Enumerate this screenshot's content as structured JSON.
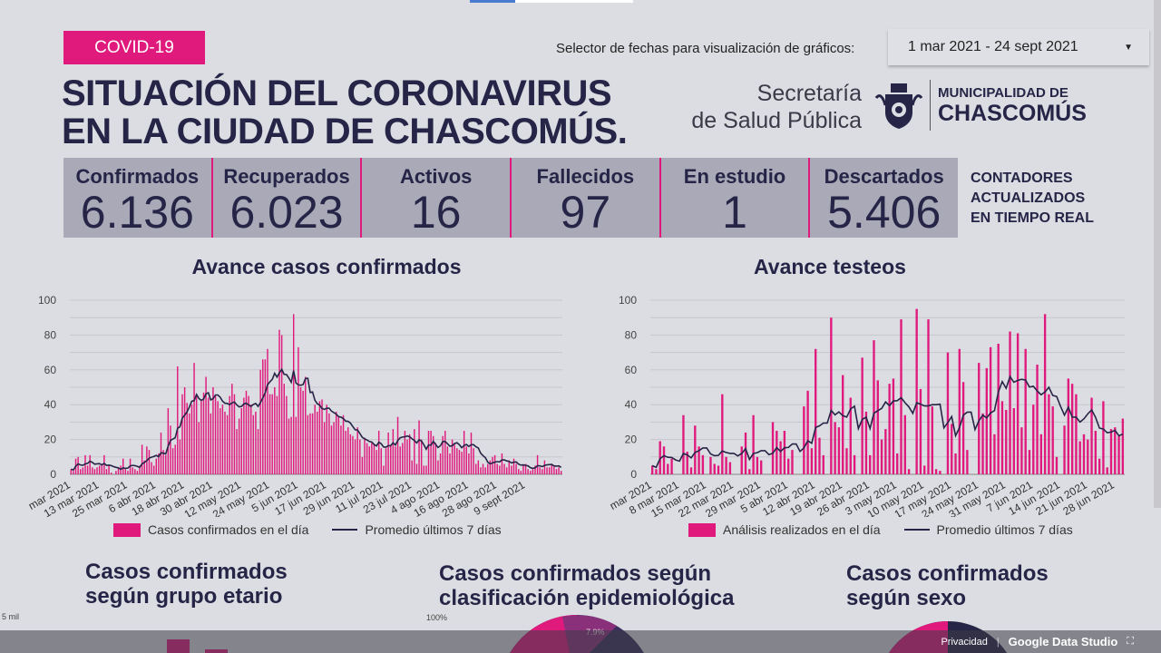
{
  "header": {
    "badge": "COVID-19",
    "title_line1": "SITUACIÓN DEL CORONAVIRUS",
    "title_line2": "EN LA CIUDAD DE CHASCOMÚS.",
    "date_selector_label": "Selector de fechas para visualización de gráficos:",
    "date_range": "1 mar 2021 - 24 sept 2021",
    "secretaria_line1": "Secretaría",
    "secretaria_line2": "de Salud Pública",
    "muni_line1": "MUNICIPALIDAD DE",
    "muni_line2": "CHASCOMÚS"
  },
  "counters": [
    {
      "label": "Confirmados",
      "value": "6.136"
    },
    {
      "label": "Recuperados",
      "value": "6.023"
    },
    {
      "label": "Activos",
      "value": "16"
    },
    {
      "label": "Fallecidos",
      "value": "97"
    },
    {
      "label": "En estudio",
      "value": "1"
    },
    {
      "label": "Descartados",
      "value": "5.406"
    }
  ],
  "counters_note": [
    "CONTADORES",
    "ACTUALIZADOS",
    "EN TIEMPO REAL"
  ],
  "colors": {
    "accent": "#e0197d",
    "navy": "#262547",
    "background": "#dcdde2"
  },
  "sections": {
    "etario": [
      "Casos confirmados",
      "según grupo etario"
    ],
    "epi": [
      "Casos confirmados según",
      "clasificación epidemiológica"
    ],
    "sexo": [
      "Casos confirmados",
      "según sexo"
    ],
    "etario_axis_top": "5 mil",
    "epi_axis_top": "100%",
    "epi_slice_label": "7.9%"
  },
  "footer": {
    "privacy": "Privacidad",
    "brand": "Google Data Studio"
  },
  "chart_data": [
    {
      "type": "bar",
      "title": "Avance casos confirmados",
      "ylim": [
        0,
        100
      ],
      "yticks": [
        0,
        20,
        40,
        60,
        80,
        100
      ],
      "grid": true,
      "legend_position": "bottom",
      "xtick_labels": [
        "mar 2021",
        "13 mar 2021",
        "25 mar 2021",
        "6 abr 2021",
        "18 abr 2021",
        "30 abr 2021",
        "12 may 2021",
        "24 may 2021",
        "5 jun 2021",
        "17 jun 2021",
        "29 jun 2021",
        "11 jul 2021",
        "23 jul 2021",
        "4 ago 2021",
        "16 ago 2021",
        "28 ago 2021",
        "9 sept 2021"
      ],
      "x_start": "1 mar 2021",
      "x_end": "24 sept 2021",
      "series": [
        {
          "name": "Casos confirmados en el día",
          "type": "bar",
          "values": [
            3,
            2,
            9,
            10,
            3,
            4,
            11,
            5,
            11,
            4,
            3,
            4,
            5,
            6,
            11,
            3,
            5,
            1,
            0,
            2,
            4,
            5,
            9,
            3,
            2,
            9,
            4,
            3,
            2,
            5,
            17,
            8,
            16,
            14,
            7,
            5,
            9,
            12,
            24,
            14,
            11,
            38,
            28,
            15,
            17,
            62,
            20,
            46,
            50,
            41,
            35,
            40,
            64,
            45,
            30,
            42,
            47,
            56,
            44,
            35,
            50,
            45,
            42,
            38,
            40,
            36,
            34,
            45,
            52,
            46,
            26,
            32,
            38,
            44,
            48,
            45,
            40,
            34,
            36,
            26,
            60,
            66,
            66,
            72,
            46,
            46,
            50,
            45,
            83,
            80,
            52,
            45,
            32,
            33,
            92,
            33,
            73,
            50,
            48,
            56,
            34,
            35,
            35,
            40,
            36,
            42,
            43,
            30,
            40,
            35,
            28,
            30,
            36,
            33,
            28,
            34,
            25,
            27,
            23,
            22,
            20,
            27,
            20,
            10,
            21,
            18,
            16,
            18,
            17,
            14,
            25,
            15,
            5,
            15,
            24,
            17,
            26,
            16,
            33,
            16,
            18,
            25,
            20,
            23,
            8,
            26,
            6,
            31,
            20,
            5,
            5,
            25,
            25,
            22,
            18,
            8,
            12,
            22,
            25,
            16,
            12,
            20,
            17,
            15,
            14,
            13,
            25,
            16,
            12,
            24,
            15,
            6,
            8,
            4,
            6,
            4,
            6,
            8,
            10,
            11,
            6,
            5,
            12,
            6,
            4,
            8,
            5,
            9,
            6,
            3,
            2,
            5,
            6,
            3,
            2,
            3,
            5,
            11,
            4,
            3,
            8,
            4,
            4,
            6,
            5,
            3,
            4,
            2
          ]
        },
        {
          "name": "Promedio últimos 7 días",
          "type": "line",
          "derived": "7-day rolling mean"
        }
      ]
    },
    {
      "type": "bar",
      "title": "Avance testeos",
      "ylim": [
        0,
        100
      ],
      "yticks": [
        0,
        20,
        40,
        60,
        80,
        100
      ],
      "grid": true,
      "legend_position": "bottom",
      "xtick_labels": [
        "mar 2021",
        "8 mar 2021",
        "15 mar 2021",
        "22 mar 2021",
        "29 mar 2021",
        "5 abr 2021",
        "12 abr 2021",
        "19 abr 2021",
        "26 abr 2021",
        "3 may 2021",
        "10 may 2021",
        "17 may 2021",
        "24 may 2021",
        "31 may 2021",
        "7 jun 2021",
        "14 jun 2021",
        "21 jun 2021",
        "28 jun 2021"
      ],
      "x_start": "1 mar 2021",
      "x_end": "30 jun 2021",
      "series": [
        {
          "name": "Análisis realizados en el día",
          "type": "bar",
          "values": [
            5,
            3,
            19,
            16,
            6,
            9,
            0,
            0,
            34,
            13,
            4,
            28,
            16,
            11,
            0,
            10,
            6,
            5,
            46,
            10,
            7,
            0,
            0,
            16,
            24,
            3,
            34,
            10,
            8,
            0,
            0,
            30,
            25,
            19,
            25,
            9,
            14,
            0,
            0,
            39,
            48,
            15,
            72,
            21,
            11,
            0,
            90,
            30,
            27,
            57,
            15,
            44,
            11,
            0,
            67,
            36,
            11,
            77,
            54,
            20,
            26,
            52,
            55,
            12,
            89,
            34,
            3,
            0,
            95,
            49,
            5,
            89,
            39,
            3,
            2,
            0,
            70,
            29,
            12,
            72,
            53,
            14,
            0,
            0,
            64,
            35,
            61,
            73,
            23,
            75,
            42,
            37,
            82,
            38,
            81,
            27,
            72,
            14,
            40,
            63,
            23,
            92,
            46,
            39,
            10,
            0,
            28,
            55,
            52,
            46,
            19,
            23,
            20,
            44,
            25,
            9,
            42,
            4,
            26,
            27,
            22,
            32
          ]
        },
        {
          "name": "Promedio últimos 7 días",
          "type": "line",
          "derived": "7-day rolling mean"
        }
      ]
    }
  ]
}
